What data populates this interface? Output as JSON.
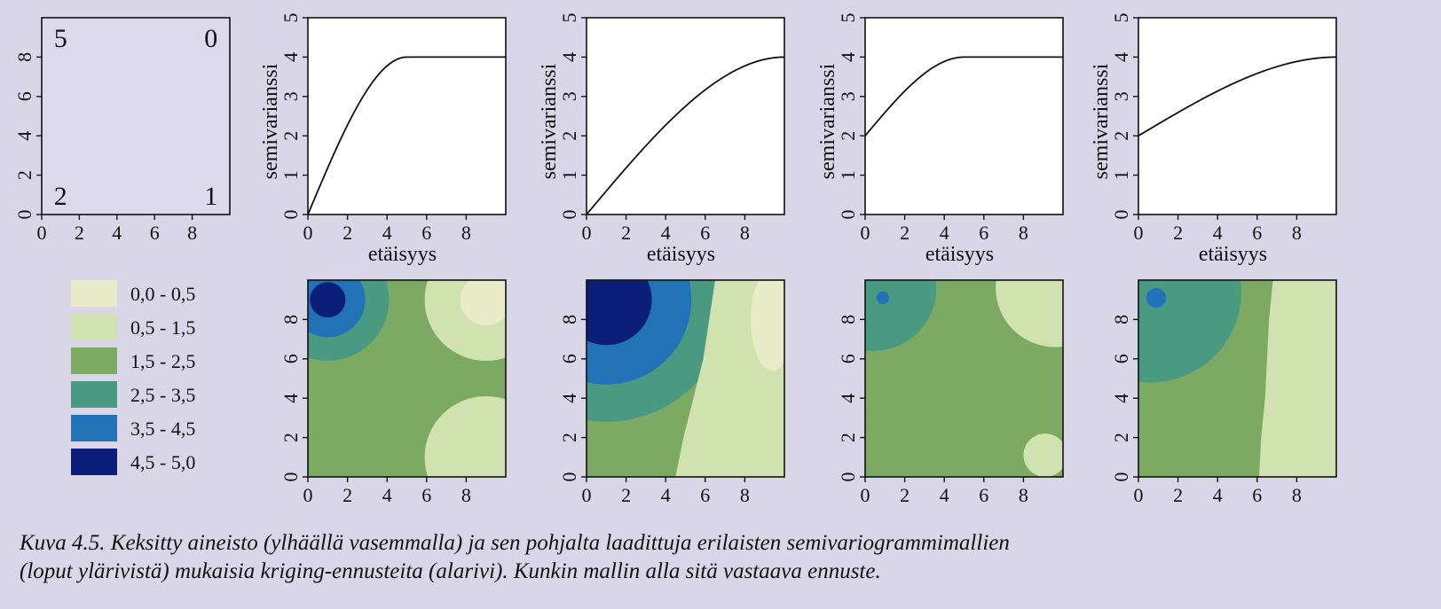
{
  "chart_data": [
    {
      "type": "scatter",
      "panel": "data",
      "xlim": [
        0,
        10
      ],
      "ylim": [
        0,
        10
      ],
      "x_ticks": [
        "0",
        "2",
        "4",
        "6",
        "8"
      ],
      "y_ticks": [
        "0",
        "2",
        "4",
        "6",
        "8"
      ],
      "points": [
        {
          "x": 1,
          "y": 9,
          "label": "5"
        },
        {
          "x": 9,
          "y": 9,
          "label": "0"
        },
        {
          "x": 1,
          "y": 1,
          "label": "2"
        },
        {
          "x": 9,
          "y": 1,
          "label": "1"
        }
      ]
    },
    {
      "type": "line",
      "panel": "variogram",
      "xlabel": "etäisyys",
      "ylabel": "semivarianssi",
      "xlim": [
        0,
        10
      ],
      "ylim": [
        0,
        5
      ],
      "x_ticks": [
        "0",
        "2",
        "4",
        "6",
        "8"
      ],
      "y_ticks": [
        "0",
        "1",
        "2",
        "3",
        "4",
        "5"
      ],
      "model": {
        "nugget": 0,
        "sill": 4,
        "range": 5
      },
      "points": [
        [
          0,
          0
        ],
        [
          1,
          1.19
        ],
        [
          2,
          2.29
        ],
        [
          3,
          3.24
        ],
        [
          4,
          3.78
        ],
        [
          5,
          4
        ],
        [
          10,
          4
        ]
      ]
    },
    {
      "type": "line",
      "panel": "variogram",
      "xlabel": "etäisyys",
      "ylabel": "semivarianssi",
      "xlim": [
        0,
        10
      ],
      "ylim": [
        0,
        5
      ],
      "x_ticks": [
        "0",
        "2",
        "4",
        "6",
        "8"
      ],
      "y_ticks": [
        "0",
        "1",
        "2",
        "3",
        "4",
        "5"
      ],
      "model": {
        "nugget": 0,
        "sill": 4,
        "range": 10
      },
      "points": [
        [
          0,
          0
        ],
        [
          2,
          1.19
        ],
        [
          4,
          2.29
        ],
        [
          6,
          3.24
        ],
        [
          8,
          3.78
        ],
        [
          10,
          4
        ]
      ]
    },
    {
      "type": "line",
      "panel": "variogram",
      "xlabel": "etäisyys",
      "ylabel": "semivarianssi",
      "xlim": [
        0,
        10
      ],
      "ylim": [
        0,
        5
      ],
      "x_ticks": [
        "0",
        "2",
        "4",
        "6",
        "8"
      ],
      "y_ticks": [
        "0",
        "1",
        "2",
        "3",
        "4",
        "5"
      ],
      "model": {
        "nugget": 2,
        "sill": 4,
        "range": 5
      },
      "points": [
        [
          0,
          2
        ],
        [
          1,
          2.6
        ],
        [
          2,
          3.14
        ],
        [
          3,
          3.62
        ],
        [
          4,
          3.89
        ],
        [
          5,
          4
        ],
        [
          10,
          4
        ]
      ]
    },
    {
      "type": "line",
      "panel": "variogram",
      "xlabel": "etäisyys",
      "ylabel": "semivarianssi",
      "xlim": [
        0,
        10
      ],
      "ylim": [
        0,
        5
      ],
      "x_ticks": [
        "0",
        "2",
        "4",
        "6",
        "8"
      ],
      "y_ticks": [
        "0",
        "1",
        "2",
        "3",
        "4",
        "5"
      ],
      "model": {
        "nugget": 2,
        "sill": 4,
        "range": 10
      },
      "points": [
        [
          0,
          2
        ],
        [
          2,
          2.6
        ],
        [
          4,
          3.14
        ],
        [
          6,
          3.62
        ],
        [
          8,
          3.89
        ],
        [
          10,
          4
        ]
      ]
    },
    {
      "type": "heatmap",
      "panel": "legend",
      "classes": [
        {
          "label": "0,0 - 0,5",
          "color": "#e9ecc9"
        },
        {
          "label": "0,5 - 1,5",
          "color": "#cfe2b0"
        },
        {
          "label": "1,5 - 2,5",
          "color": "#7daa63"
        },
        {
          "label": "2,5 - 3,5",
          "color": "#4a9a82"
        },
        {
          "label": "3,5 - 4,5",
          "color": "#2272b8"
        },
        {
          "label": "4,5 - 5,0",
          "color": "#0b1f7a"
        }
      ]
    },
    {
      "type": "heatmap",
      "panel": "prediction",
      "xlim": [
        0,
        10
      ],
      "ylim": [
        0,
        10
      ],
      "x_ticks": [
        "0",
        "2",
        "4",
        "6",
        "8"
      ],
      "y_ticks": [
        "0",
        "2",
        "4",
        "6",
        "8"
      ],
      "background_class": 2,
      "regions": [
        {
          "shape": "circle",
          "cx": 1,
          "cy": 9,
          "r": 3.1,
          "class": 3
        },
        {
          "shape": "circle",
          "cx": 1,
          "cy": 9,
          "r": 1.9,
          "class": 4
        },
        {
          "shape": "circle",
          "cx": 1,
          "cy": 9,
          "r": 0.9,
          "class": 5
        },
        {
          "shape": "circle",
          "cx": 9,
          "cy": 9,
          "r": 3.1,
          "class": 1
        },
        {
          "shape": "circle",
          "cx": 9,
          "cy": 9,
          "r": 1.3,
          "class": 0
        },
        {
          "shape": "circle",
          "cx": 9,
          "cy": 1,
          "r": 3.1,
          "class": 1
        }
      ]
    },
    {
      "type": "heatmap",
      "panel": "prediction",
      "xlim": [
        0,
        10
      ],
      "ylim": [
        0,
        10
      ],
      "x_ticks": [
        "0",
        "2",
        "4",
        "6",
        "8"
      ],
      "y_ticks": [
        "0",
        "2",
        "4",
        "6",
        "8"
      ],
      "background_class": 2,
      "regions": [
        {
          "shape": "circle",
          "cx": 1,
          "cy": 9,
          "r": 6.2,
          "class": 3
        },
        {
          "shape": "circle",
          "cx": 1,
          "cy": 9,
          "r": 4.3,
          "class": 4
        },
        {
          "shape": "circle",
          "cx": 1,
          "cy": 9,
          "r": 2.3,
          "class": 5
        },
        {
          "shape": "path",
          "class": 1,
          "points": [
            [
              10,
              10
            ],
            [
              6.5,
              10
            ],
            [
              6.2,
              8
            ],
            [
              5.9,
              6
            ],
            [
              5.4,
              4
            ],
            [
              4.9,
              2
            ],
            [
              4.5,
              0
            ],
            [
              10,
              0
            ]
          ]
        },
        {
          "shape": "ellipse",
          "cx": 9.4,
          "cy": 8.0,
          "rx": 1.1,
          "ry": 2.6,
          "class": 0
        }
      ]
    },
    {
      "type": "heatmap",
      "panel": "prediction",
      "xlim": [
        0,
        10
      ],
      "ylim": [
        0,
        10
      ],
      "x_ticks": [
        "0",
        "2",
        "4",
        "6",
        "8"
      ],
      "y_ticks": [
        "0",
        "2",
        "4",
        "6",
        "8"
      ],
      "background_class": 2,
      "regions": [
        {
          "shape": "circle",
          "cx": 0.4,
          "cy": 9.6,
          "r": 3.2,
          "class": 3
        },
        {
          "shape": "circle",
          "cx": 0.9,
          "cy": 9.1,
          "r": 0.32,
          "class": 4
        },
        {
          "shape": "circle",
          "cx": 9.6,
          "cy": 9.6,
          "r": 3.0,
          "class": 1
        },
        {
          "shape": "circle",
          "cx": 9.1,
          "cy": 1.1,
          "r": 1.1,
          "class": 1
        }
      ]
    },
    {
      "type": "heatmap",
      "panel": "prediction",
      "xlim": [
        0,
        10
      ],
      "ylim": [
        0,
        10
      ],
      "x_ticks": [
        "0",
        "2",
        "4",
        "6",
        "8"
      ],
      "y_ticks": [
        "0",
        "2",
        "4",
        "6",
        "8"
      ],
      "background_class": 2,
      "regions": [
        {
          "shape": "circle",
          "cx": 0.6,
          "cy": 9.4,
          "r": 4.6,
          "class": 3
        },
        {
          "shape": "circle",
          "cx": 0.9,
          "cy": 9.1,
          "r": 0.5,
          "class": 4
        },
        {
          "shape": "path",
          "class": 1,
          "points": [
            [
              10,
              10
            ],
            [
              6.8,
              10
            ],
            [
              6.6,
              8
            ],
            [
              6.5,
              6
            ],
            [
              6.4,
              4
            ],
            [
              6.2,
              2
            ],
            [
              6.1,
              0
            ],
            [
              10,
              0
            ]
          ]
        }
      ]
    }
  ],
  "caption": {
    "line1": "Kuva 4.5. Keksitty aineisto (ylhäällä vasemmalla) ja sen pohjalta laadittuja erilaisten semivariogrammimallien",
    "line2": "(loput ylärivistä) mukaisia kriging-ennusteita (alarivi). Kunkin mallin alla sitä vastaava ennuste."
  }
}
